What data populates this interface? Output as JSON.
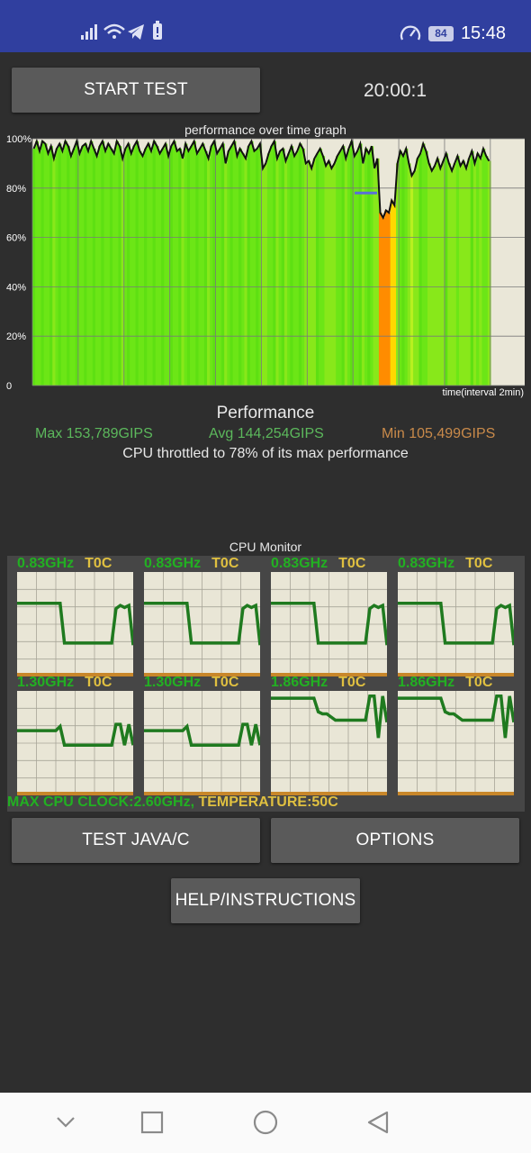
{
  "status_bar": {
    "time": "15:48",
    "battery": "84",
    "icons": [
      "signal-icon",
      "wifi-icon",
      "telegram-icon",
      "battery-alert-icon",
      "speed-icon"
    ]
  },
  "controls": {
    "start_label": "START TEST",
    "timer": "20:00:1",
    "java_label": "TEST JAVA/C",
    "options_label": "OPTIONS",
    "help_label": "HELP/INSTRUCTIONS"
  },
  "chart_data": {
    "type": "line",
    "title": "performance over time graph",
    "xlabel": "time(interval 2min)",
    "ylabel": "",
    "yticks": [
      "100%",
      "80%",
      "60%",
      "40%",
      "20%",
      "0"
    ],
    "ylim": [
      0,
      100
    ],
    "grid": true,
    "series": [
      {
        "values": [
          96,
          99,
          95,
          99,
          98,
          94,
          97,
          92,
          96,
          98,
          95,
          99,
          97,
          93,
          96,
          99,
          94,
          97,
          98,
          95,
          99,
          96,
          93,
          97,
          99,
          95,
          98,
          96,
          94,
          99,
          97,
          92,
          96,
          98,
          94,
          97,
          99,
          95,
          93,
          96,
          98,
          95,
          99,
          97,
          94,
          96,
          98,
          93,
          97,
          99,
          95,
          96,
          92,
          98,
          95,
          97,
          99,
          94,
          96,
          98,
          95,
          92,
          97,
          99,
          94,
          96,
          98,
          90,
          95,
          97,
          99,
          93,
          96,
          94,
          92,
          97,
          99,
          95,
          96,
          98,
          88,
          90,
          94,
          97,
          99,
          92,
          95,
          96,
          91,
          94,
          97,
          93,
          95,
          98,
          96,
          90,
          91,
          88,
          92,
          94,
          96,
          93,
          89,
          91,
          88,
          90,
          93,
          95,
          97,
          92,
          96,
          99,
          93,
          95,
          98,
          90,
          96,
          94,
          97,
          88,
          92,
          70,
          68,
          71,
          70,
          75,
          73,
          90,
          95,
          93,
          96,
          90,
          85,
          87,
          92,
          94,
          98,
          95,
          90,
          87,
          89,
          92,
          88,
          91,
          94,
          90,
          87,
          90,
          93,
          89,
          91,
          88,
          92,
          95,
          90,
          94,
          92,
          96,
          93,
          91
        ]
      }
    ],
    "reference_line": 78
  },
  "performance": {
    "title": "Performance",
    "max": "Max 153,789GIPS",
    "avg": "Avg 144,254GIPS",
    "min": "Min 105,499GIPS",
    "throttle": "CPU throttled to 78% of its max performance"
  },
  "cpu_monitor": {
    "title": "CPU Monitor",
    "cores": [
      {
        "ghz": "0.83GHz",
        "temp": "T0C",
        "values": [
          0.7,
          0.7,
          0.7,
          0.7,
          0.7,
          0.7,
          0.7,
          0.7,
          0.7,
          0.7,
          0.7,
          0.32,
          0.32,
          0.32,
          0.32,
          0.32,
          0.32,
          0.32,
          0.32,
          0.32,
          0.32,
          0.32,
          0.32,
          0.65,
          0.68,
          0.66,
          0.68,
          0.3
        ]
      },
      {
        "ghz": "0.83GHz",
        "temp": "T0C",
        "values": [
          0.7,
          0.7,
          0.7,
          0.7,
          0.7,
          0.7,
          0.7,
          0.7,
          0.7,
          0.7,
          0.7,
          0.32,
          0.32,
          0.32,
          0.32,
          0.32,
          0.32,
          0.32,
          0.32,
          0.32,
          0.32,
          0.32,
          0.32,
          0.65,
          0.68,
          0.66,
          0.68,
          0.3
        ]
      },
      {
        "ghz": "0.83GHz",
        "temp": "T0C",
        "values": [
          0.7,
          0.7,
          0.7,
          0.7,
          0.7,
          0.7,
          0.7,
          0.7,
          0.7,
          0.7,
          0.7,
          0.32,
          0.32,
          0.32,
          0.32,
          0.32,
          0.32,
          0.32,
          0.32,
          0.32,
          0.32,
          0.32,
          0.32,
          0.65,
          0.68,
          0.66,
          0.68,
          0.3
        ]
      },
      {
        "ghz": "0.83GHz",
        "temp": "T0C",
        "values": [
          0.7,
          0.7,
          0.7,
          0.7,
          0.7,
          0.7,
          0.7,
          0.7,
          0.7,
          0.7,
          0.7,
          0.32,
          0.32,
          0.32,
          0.32,
          0.32,
          0.32,
          0.32,
          0.32,
          0.32,
          0.32,
          0.32,
          0.32,
          0.65,
          0.68,
          0.66,
          0.68,
          0.3
        ]
      },
      {
        "ghz": "1.30GHz",
        "temp": "T0C",
        "values": [
          0.62,
          0.62,
          0.62,
          0.62,
          0.62,
          0.62,
          0.62,
          0.62,
          0.62,
          0.62,
          0.66,
          0.48,
          0.48,
          0.48,
          0.48,
          0.48,
          0.48,
          0.48,
          0.48,
          0.48,
          0.48,
          0.48,
          0.48,
          0.68,
          0.68,
          0.48,
          0.68,
          0.48
        ]
      },
      {
        "ghz": "1.30GHz",
        "temp": "T0C",
        "values": [
          0.62,
          0.62,
          0.62,
          0.62,
          0.62,
          0.62,
          0.62,
          0.62,
          0.62,
          0.62,
          0.66,
          0.48,
          0.48,
          0.48,
          0.48,
          0.48,
          0.48,
          0.48,
          0.48,
          0.48,
          0.48,
          0.48,
          0.48,
          0.68,
          0.68,
          0.48,
          0.68,
          0.48
        ]
      },
      {
        "ghz": "1.86GHz",
        "temp": "T0C",
        "values": [
          0.93,
          0.93,
          0.93,
          0.93,
          0.93,
          0.93,
          0.93,
          0.93,
          0.93,
          0.93,
          0.93,
          0.8,
          0.78,
          0.78,
          0.75,
          0.72,
          0.72,
          0.72,
          0.72,
          0.72,
          0.72,
          0.72,
          0.72,
          0.95,
          0.95,
          0.55,
          0.95,
          0.7
        ]
      },
      {
        "ghz": "1.86GHz",
        "temp": "T0C",
        "values": [
          0.93,
          0.93,
          0.93,
          0.93,
          0.93,
          0.93,
          0.93,
          0.93,
          0.93,
          0.93,
          0.93,
          0.8,
          0.78,
          0.78,
          0.75,
          0.72,
          0.72,
          0.72,
          0.72,
          0.72,
          0.72,
          0.72,
          0.72,
          0.95,
          0.95,
          0.55,
          0.95,
          0.7
        ]
      }
    ],
    "max_clock": "MAX CPU CLOCK:2.60GHz,",
    "temperature": "TEMPERATURE:50C"
  },
  "nav": [
    "nav-down-icon",
    "nav-recents-icon",
    "nav-home-icon",
    "nav-back-icon"
  ]
}
